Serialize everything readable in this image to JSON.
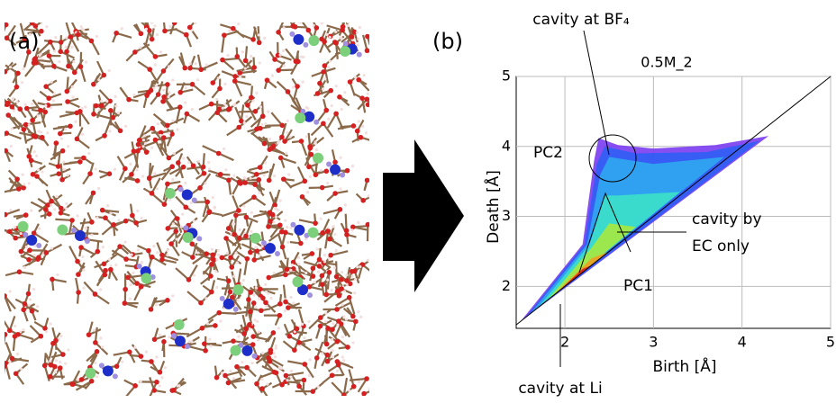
{
  "panel_labels": [
    "(a)",
    "(b)"
  ],
  "chart_data": {
    "type": "persistence-diagram",
    "title": "0.5M_2",
    "x_label": "Birth [Å]",
    "y_label": "Death [Å]",
    "xlim": [
      1.45,
      5
    ],
    "ylim": [
      1.4,
      5
    ],
    "xticks": [
      2,
      3,
      4,
      5
    ],
    "yticks": [
      2,
      3,
      4,
      5
    ],
    "grid": true,
    "diagonal": true,
    "annotations": [
      "cavity at BF₄",
      "PC2",
      "cavity by",
      "EC only",
      "PC1",
      "cavity at Li"
    ]
  }
}
